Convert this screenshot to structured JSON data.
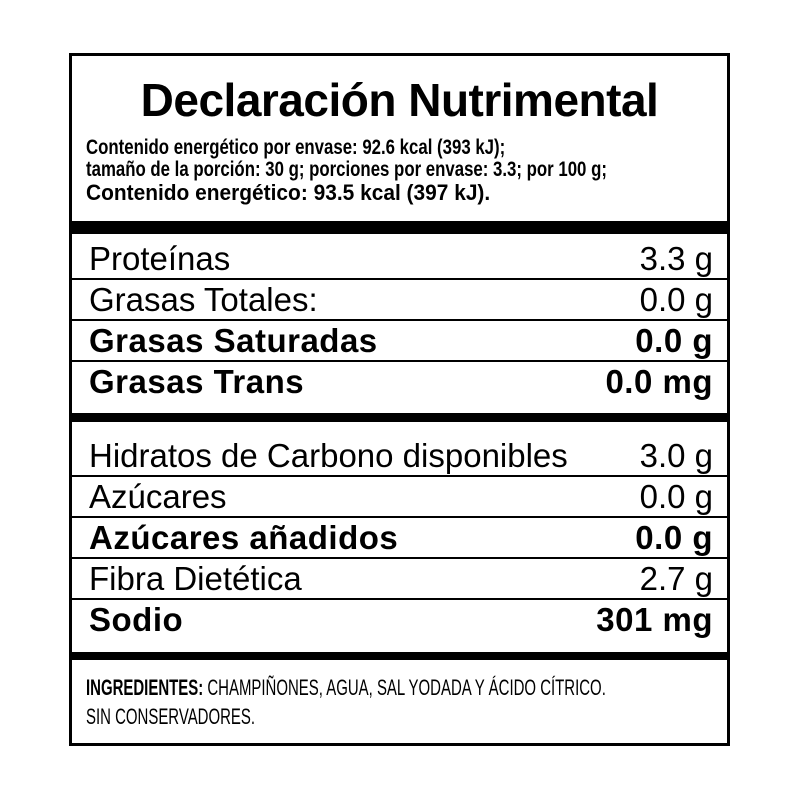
{
  "label": {
    "title": "Declaración Nutrimental",
    "intro_lines": [
      "Contenido energético por envase: 92.6 kcal (393 kJ);",
      "tamaño de la porción: 30 g; porciones por envase: 3.3; por 100 g;",
      "Contenido energético: 93.5 kcal (397 kJ)."
    ],
    "sections": [
      {
        "rows": [
          {
            "name": "Proteínas",
            "value": "3.3 g",
            "bold": false
          },
          {
            "name": "Grasas Totales:",
            "value": "0.0 g",
            "bold": false
          },
          {
            "name": "Grasas Saturadas",
            "value": "0.0 g",
            "bold": true
          },
          {
            "name": "Grasas Trans",
            "value": "0.0 mg",
            "bold": true
          }
        ]
      },
      {
        "rows": [
          {
            "name": "Hidratos de Carbono disponibles",
            "value": "3.0 g",
            "bold": false
          },
          {
            "name": "Azúcares",
            "value": "0.0 g",
            "bold": false
          },
          {
            "name": "Azúcares añadidos",
            "value": "0.0 g",
            "bold": true
          },
          {
            "name": "Fibra Dietética",
            "value": "2.7 g",
            "bold": false
          },
          {
            "name": "Sodio",
            "value": "301 mg",
            "bold": true
          }
        ]
      }
    ],
    "ingredients": {
      "label": "INGREDIENTES:",
      "text": "CHAMPIÑONES, AGUA, SAL YODADA Y ÁCIDO CÍTRICO.",
      "line2": "SIN CONSERVADORES."
    },
    "colors": {
      "text": "#000000",
      "background": "#ffffff",
      "divider": "#000000"
    }
  }
}
